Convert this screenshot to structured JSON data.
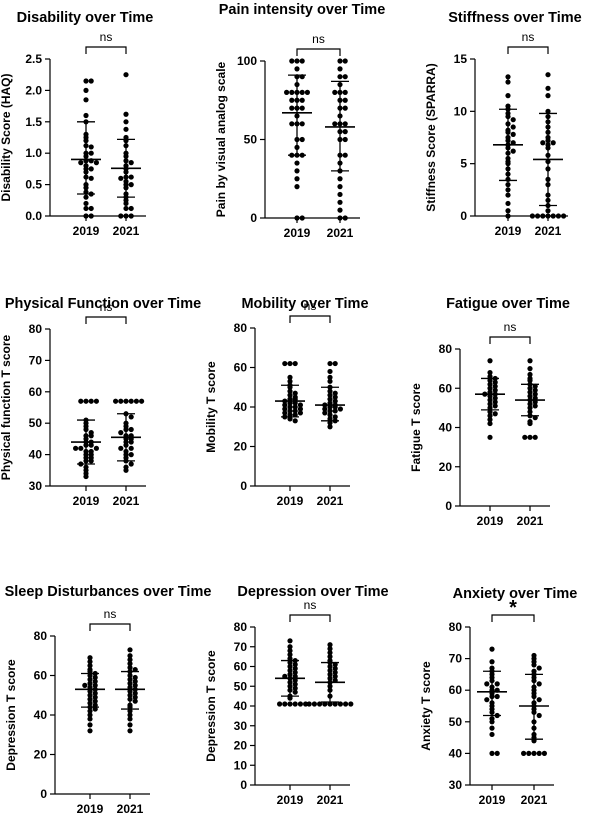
{
  "chart_data": [
    {
      "type": "scatter",
      "title": "Disability over Time",
      "ylabel": "Disability Score (HAQ)",
      "categories": [
        "2019",
        "2021"
      ],
      "ylim": [
        0,
        2.5
      ],
      "yticks": [
        "0.0",
        "0.5",
        "1.0",
        "1.5",
        "2.0",
        "2.5"
      ],
      "significance": "ns",
      "summary": [
        {
          "category": "2019",
          "mean": 0.9,
          "sd_low": 0.35,
          "sd_high": 1.5
        },
        {
          "category": "2021",
          "mean": 0.76,
          "sd_low": 0.3,
          "sd_high": 1.22
        }
      ],
      "series": [
        {
          "category": "2019",
          "values": [
            2.15,
            2.15,
            2.0,
            1.85,
            1.6,
            1.5,
            1.3,
            1.25,
            1.2,
            1.12,
            1.1,
            1.0,
            1.0,
            0.95,
            0.88,
            0.88,
            0.85,
            0.85,
            0.8,
            0.75,
            0.75,
            0.7,
            0.62,
            0.6,
            0.5,
            0.45,
            0.38,
            0.35,
            0.3,
            0.2,
            0.12,
            0.12,
            0.0,
            0.0
          ]
        },
        {
          "category": "2021",
          "values": [
            2.25,
            1.62,
            1.5,
            1.38,
            1.25,
            1.2,
            1.12,
            1.0,
            0.95,
            0.88,
            0.85,
            0.8,
            0.75,
            0.7,
            0.62,
            0.62,
            0.6,
            0.55,
            0.5,
            0.5,
            0.45,
            0.35,
            0.3,
            0.25,
            0.2,
            0.12,
            0.12,
            0.0,
            0.0,
            0.0
          ]
        }
      ]
    },
    {
      "type": "scatter",
      "title": "Pain intensity over Time",
      "ylabel": "Pain by visual analog scale",
      "categories": [
        "2019",
        "2021"
      ],
      "ylim": [
        0,
        100
      ],
      "yticks": [
        "0",
        "50",
        "100"
      ],
      "significance": "ns",
      "summary": [
        {
          "category": "2019",
          "mean": 67,
          "sd_low": 40,
          "sd_high": 91
        },
        {
          "category": "2021",
          "mean": 58,
          "sd_low": 30,
          "sd_high": 87
        }
      ],
      "series": [
        {
          "category": "2019",
          "values": [
            100,
            100,
            100,
            95,
            90,
            90,
            85,
            80,
            80,
            80,
            80,
            80,
            75,
            75,
            75,
            70,
            70,
            70,
            65,
            60,
            60,
            60,
            50,
            50,
            45,
            40,
            40,
            40,
            35,
            30,
            25,
            20,
            0,
            0
          ]
        },
        {
          "category": "2021",
          "values": [
            100,
            100,
            95,
            90,
            90,
            85,
            80,
            80,
            80,
            75,
            75,
            70,
            70,
            65,
            60,
            60,
            60,
            55,
            55,
            50,
            50,
            40,
            40,
            35,
            30,
            25,
            20,
            15,
            10,
            5,
            0,
            0
          ]
        }
      ]
    },
    {
      "type": "scatter",
      "title": "Stiffness over Time",
      "ylabel": "Stiffness Score (SPARRA)",
      "categories": [
        "2019",
        "2021"
      ],
      "ylim": [
        0,
        15
      ],
      "yticks": [
        "0",
        "5",
        "10",
        "15"
      ],
      "significance": "ns",
      "summary": [
        {
          "category": "2019",
          "mean": 6.8,
          "sd_low": 3.4,
          "sd_high": 10.2
        },
        {
          "category": "2021",
          "mean": 5.4,
          "sd_low": 1.0,
          "sd_high": 9.8
        }
      ],
      "series": [
        {
          "category": "2019",
          "values": [
            13.3,
            12.8,
            11.5,
            10.5,
            10.2,
            9.8,
            9.5,
            9.2,
            8.8,
            8.5,
            8.2,
            8.0,
            7.8,
            7.5,
            7.2,
            7.0,
            6.8,
            6.5,
            6.2,
            6.0,
            5.5,
            5.2,
            5.0,
            4.5,
            4.0,
            3.5,
            3.0,
            2.5,
            2.0,
            1.2,
            0.5,
            0.0
          ]
        },
        {
          "category": "2021",
          "values": [
            13.5,
            12.2,
            11.5,
            10.0,
            9.5,
            9.0,
            8.5,
            8.0,
            7.5,
            7.2,
            7.0,
            7.0,
            6.8,
            6.5,
            5.8,
            5.2,
            4.5,
            3.5,
            3.0,
            2.0,
            1.5,
            1.0,
            0.5,
            0.0,
            0.0,
            0.0,
            0.0,
            0.0,
            0.0,
            0.0
          ]
        }
      ]
    },
    {
      "type": "scatter",
      "title": "Physical Function over Time",
      "ylabel": "Physical function T score",
      "categories": [
        "2019",
        "2021"
      ],
      "ylim": [
        30,
        80
      ],
      "yticks": [
        "30",
        "40",
        "50",
        "60",
        "70",
        "80"
      ],
      "significance": "ns",
      "summary": [
        {
          "category": "2019",
          "mean": 44,
          "sd_low": 37,
          "sd_high": 51
        },
        {
          "category": "2021",
          "mean": 45.5,
          "sd_low": 38,
          "sd_high": 53
        }
      ],
      "series": [
        {
          "category": "2019",
          "values": [
            57,
            57,
            57,
            57,
            51,
            50,
            49,
            48,
            47,
            46,
            46,
            45,
            44,
            44,
            43,
            43,
            42,
            42,
            42,
            41,
            41,
            40,
            40,
            39,
            39,
            38,
            38,
            37,
            36,
            35,
            34,
            33
          ]
        },
        {
          "category": "2021",
          "values": [
            57,
            57,
            57,
            57,
            57,
            57,
            53,
            52,
            50,
            49,
            48,
            48,
            47,
            46,
            46,
            45,
            45,
            44,
            44,
            43,
            42,
            42,
            41,
            40,
            40,
            39,
            38,
            37,
            36,
            35
          ]
        }
      ]
    },
    {
      "type": "scatter",
      "title": "Mobility over Time",
      "ylabel": "Mobility T score",
      "categories": [
        "2019",
        "2021"
      ],
      "ylim": [
        0,
        80
      ],
      "yticks": [
        "0",
        "20",
        "40",
        "60",
        "80"
      ],
      "significance": "ns",
      "summary": [
        {
          "category": "2019",
          "mean": 43,
          "sd_low": 35,
          "sd_high": 51
        },
        {
          "category": "2021",
          "mean": 41,
          "sd_low": 33,
          "sd_high": 50
        }
      ],
      "series": [
        {
          "category": "2019",
          "values": [
            62,
            62,
            62,
            55,
            53,
            51,
            50,
            48,
            47,
            46,
            45,
            44,
            44,
            43,
            42,
            42,
            41,
            41,
            40,
            40,
            39,
            39,
            38,
            38,
            37,
            37,
            36,
            36,
            35,
            34,
            33
          ]
        },
        {
          "category": "2021",
          "values": [
            62,
            62,
            58,
            55,
            53,
            50,
            48,
            47,
            46,
            45,
            44,
            43,
            42,
            41,
            41,
            40,
            40,
            39,
            39,
            38,
            38,
            37,
            36,
            35,
            34,
            33,
            32,
            30
          ]
        }
      ]
    },
    {
      "type": "scatter",
      "title": "Fatigue over Time",
      "ylabel": "Fatigue T score",
      "categories": [
        "2019",
        "2021"
      ],
      "ylim": [
        0,
        80
      ],
      "yticks": [
        "0",
        "20",
        "40",
        "60",
        "80"
      ],
      "significance": "ns",
      "summary": [
        {
          "category": "2019",
          "mean": 57,
          "sd_low": 49,
          "sd_high": 65
        },
        {
          "category": "2021",
          "mean": 54,
          "sd_low": 46,
          "sd_high": 62
        }
      ],
      "series": [
        {
          "category": "2019",
          "values": [
            74,
            68,
            66,
            65,
            64,
            63,
            62,
            61,
            60,
            59,
            58,
            57,
            57,
            56,
            55,
            54,
            53,
            52,
            51,
            50,
            48,
            47,
            46,
            44,
            42,
            35
          ]
        },
        {
          "category": "2021",
          "values": [
            74,
            70,
            67,
            65,
            64,
            62,
            61,
            60,
            59,
            58,
            57,
            56,
            55,
            54,
            53,
            52,
            51,
            50,
            48,
            46,
            45,
            43,
            42,
            35,
            35,
            35
          ]
        }
      ]
    },
    {
      "type": "scatter",
      "title": "Sleep Disturbances over Time",
      "ylabel": "Depression T score",
      "categories": [
        "2019",
        "2021"
      ],
      "ylim": [
        0,
        80
      ],
      "yticks": [
        "0",
        "20",
        "40",
        "60",
        "80"
      ],
      "significance": "ns",
      "summary": [
        {
          "category": "2019",
          "mean": 53,
          "sd_low": 44,
          "sd_high": 61
        },
        {
          "category": "2021",
          "mean": 53,
          "sd_low": 43,
          "sd_high": 62
        }
      ],
      "series": [
        {
          "category": "2019",
          "values": [
            69,
            67,
            65,
            63,
            62,
            61,
            60,
            59,
            58,
            57,
            56,
            55,
            55,
            54,
            53,
            52,
            51,
            50,
            49,
            48,
            47,
            46,
            45,
            44,
            43,
            42,
            40,
            38,
            35,
            32
          ]
        },
        {
          "category": "2021",
          "values": [
            73,
            70,
            68,
            66,
            64,
            63,
            62,
            60,
            59,
            58,
            57,
            56,
            55,
            54,
            53,
            52,
            51,
            50,
            49,
            48,
            47,
            45,
            44,
            42,
            40,
            38,
            35,
            32
          ]
        }
      ]
    },
    {
      "type": "scatter",
      "title": "Depression over Time",
      "ylabel": "Depression T score",
      "categories": [
        "2019",
        "2021"
      ],
      "ylim": [
        0,
        80
      ],
      "yticks": [
        "0",
        "10",
        "20",
        "30",
        "40",
        "50",
        "60",
        "70",
        "80"
      ],
      "significance": "ns",
      "summary": [
        {
          "category": "2019",
          "mean": 54,
          "sd_low": 45,
          "sd_high": 63
        },
        {
          "category": "2021",
          "mean": 52,
          "sd_low": 42,
          "sd_high": 62
        }
      ],
      "series": [
        {
          "category": "2019",
          "values": [
            73,
            70,
            68,
            66,
            64,
            63,
            62,
            61,
            60,
            59,
            58,
            57,
            56,
            55,
            55,
            54,
            53,
            52,
            51,
            50,
            49,
            48,
            47,
            45,
            44,
            41,
            41,
            41,
            41,
            41,
            41
          ]
        },
        {
          "category": "2021",
          "values": [
            71,
            69,
            67,
            65,
            63,
            62,
            61,
            60,
            59,
            58,
            57,
            56,
            55,
            54,
            53,
            52,
            50,
            48,
            45,
            41,
            41,
            41,
            41,
            41,
            41,
            41,
            41,
            41
          ]
        }
      ]
    },
    {
      "type": "scatter",
      "title": "Anxiety over Time",
      "ylabel": "Anxiety T score",
      "categories": [
        "2019",
        "2021"
      ],
      "ylim": [
        30,
        80
      ],
      "yticks": [
        "30",
        "40",
        "50",
        "60",
        "70",
        "80"
      ],
      "significance": "*",
      "summary": [
        {
          "category": "2019",
          "mean": 59.5,
          "sd_low": 52,
          "sd_high": 66
        },
        {
          "category": "2021",
          "mean": 55,
          "sd_low": 44.5,
          "sd_high": 65
        }
      ],
      "series": [
        {
          "category": "2019",
          "values": [
            73,
            69,
            67,
            66,
            65,
            64,
            63,
            62,
            62,
            61,
            60,
            60,
            59,
            58,
            58,
            57,
            56,
            55,
            54,
            53,
            52,
            51,
            50,
            48,
            46,
            40,
            40
          ]
        },
        {
          "category": "2021",
          "values": [
            71,
            70,
            69,
            68,
            67,
            66,
            65,
            64,
            63,
            62,
            61,
            60,
            59,
            58,
            57,
            56,
            55,
            54,
            53,
            52,
            50,
            48,
            46,
            45,
            44,
            40,
            40,
            40,
            40,
            40
          ]
        }
      ]
    }
  ]
}
